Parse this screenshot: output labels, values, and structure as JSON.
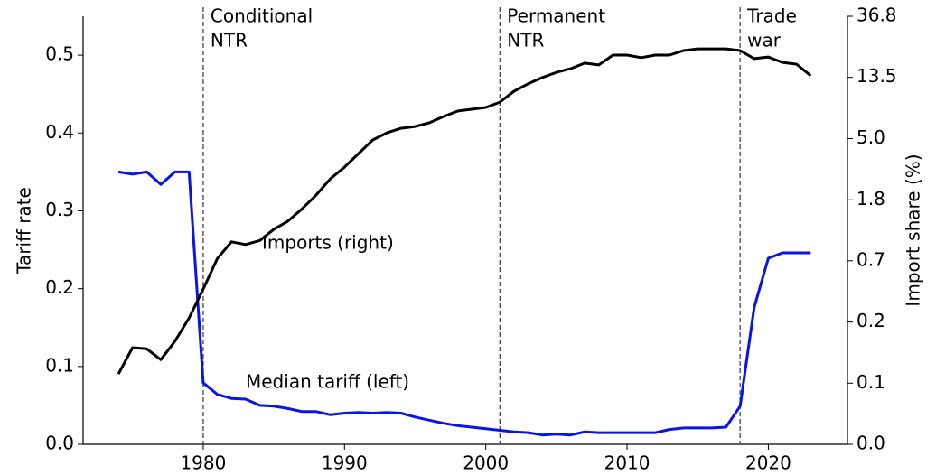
{
  "chart_data": {
    "type": "line",
    "ylabel": "Tariff rate",
    "y2label": "Import share (%)",
    "x": [
      1974,
      1975,
      1976,
      1977,
      1978,
      1979,
      1980,
      1981,
      1982,
      1983,
      1984,
      1985,
      1986,
      1987,
      1988,
      1989,
      1990,
      1991,
      1992,
      1993,
      1994,
      1995,
      1996,
      1997,
      1998,
      1999,
      2000,
      2001,
      2002,
      2003,
      2004,
      2005,
      2006,
      2007,
      2008,
      2009,
      2010,
      2011,
      2012,
      2013,
      2014,
      2015,
      2016,
      2017,
      2018,
      2019,
      2020,
      2021,
      2022,
      2023
    ],
    "xlim": [
      1971.5,
      2025.6
    ],
    "xticks": [
      1980,
      1990,
      2000,
      2010,
      2020
    ],
    "ylim": [
      0,
      0.55
    ],
    "yticks": [
      {
        "value": 0,
        "label": "0.0"
      },
      0.1,
      0.2,
      0.3,
      0.4,
      0.5
    ],
    "y2lim": [
      0.0336,
      36.8
    ],
    "y2scale": "log",
    "y2ticks": [
      {
        "value": 0.0336,
        "label": "0.0"
      },
      {
        "value": 0.0913,
        "label": "0.1"
      },
      {
        "value": 0.248,
        "label": "0.2"
      },
      {
        "value": 0.675,
        "label": "0.7"
      },
      {
        "value": 1.83,
        "label": "1.8"
      },
      {
        "value": 4.98,
        "label": "5.0"
      },
      {
        "value": 13.54,
        "label": "13.5"
      },
      36.8
    ],
    "series": [
      {
        "name": "Median tariff (left)",
        "color": "#0a14e6",
        "axis": "y",
        "values": [
          0.35,
          0.347,
          0.35,
          0.334,
          0.35,
          0.35,
          0.079,
          0.064,
          0.059,
          0.058,
          0.05,
          0.049,
          0.046,
          0.042,
          0.042,
          0.038,
          0.04,
          0.041,
          0.04,
          0.041,
          0.04,
          0.035,
          0.031,
          0.027,
          0.024,
          0.022,
          0.02,
          0.018,
          0.016,
          0.015,
          0.012,
          0.013,
          0.012,
          0.016,
          0.015,
          0.015,
          0.015,
          0.015,
          0.015,
          0.019,
          0.021,
          0.021,
          0.021,
          0.022,
          0.049,
          0.176,
          0.239,
          0.246,
          0.246,
          0.246
        ]
      },
      {
        "name": "Imports (right)",
        "color": "#000000",
        "axis": "y2",
        "values": [
          0.106,
          0.163,
          0.16,
          0.134,
          0.181,
          0.265,
          0.425,
          0.7,
          0.92,
          0.88,
          0.94,
          1.13,
          1.29,
          1.58,
          1.98,
          2.58,
          3.12,
          3.9,
          4.87,
          5.47,
          5.89,
          6.07,
          6.44,
          7.14,
          7.81,
          8.04,
          8.28,
          9.04,
          10.8,
          12.2,
          13.5,
          14.7,
          15.6,
          17.1,
          16.6,
          19.5,
          19.5,
          18.7,
          19.5,
          19.5,
          21.0,
          21.6,
          21.6,
          21.6,
          21.0,
          18.4,
          18.9,
          17.3,
          16.8,
          13.9
        ]
      }
    ],
    "vlines": [
      {
        "x": 1980,
        "label": [
          "Conditional",
          "NTR"
        ]
      },
      {
        "x": 2001,
        "label": [
          "Permanent",
          "NTR"
        ]
      },
      {
        "x": 2018,
        "label": [
          "Trade",
          "war"
        ]
      }
    ]
  }
}
